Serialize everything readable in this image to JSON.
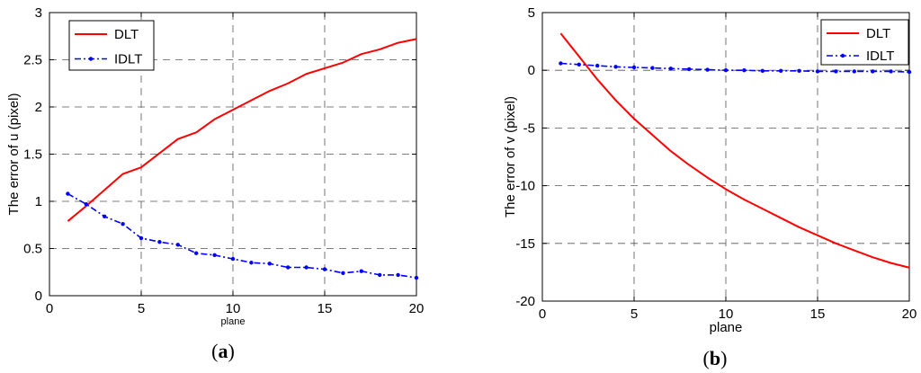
{
  "captions": {
    "a_open": "(",
    "a_letter": "a",
    "a_close": ")",
    "b_open": "(",
    "b_letter": "b",
    "b_close": ")"
  },
  "chart_data": [
    {
      "type": "line",
      "xlabel": "plane",
      "ylabel": "The error of u (pixel)",
      "xlim": [
        0,
        20
      ],
      "ylim": [
        0,
        3
      ],
      "xticks": [
        0,
        5,
        10,
        15,
        20
      ],
      "xtick_labels": [
        "0",
        "5",
        "10",
        "15",
        "20"
      ],
      "yticks": [
        0,
        0.5,
        1,
        1.5,
        2,
        2.5,
        3
      ],
      "ytick_labels": [
        "0",
        "0.5",
        "1",
        "1.5",
        "2",
        "2.5",
        "3"
      ],
      "grid": true,
      "legend": "top-left",
      "x": [
        1,
        2,
        3,
        4,
        5,
        6,
        7,
        8,
        9,
        10,
        11,
        12,
        13,
        14,
        15,
        16,
        17,
        18,
        19,
        20
      ],
      "series": [
        {
          "name": "DLT",
          "color": "#ff0000",
          "style": "solid",
          "values": [
            0.79,
            0.95,
            1.12,
            1.29,
            1.36,
            1.51,
            1.66,
            1.73,
            1.87,
            1.97,
            2.07,
            2.17,
            2.25,
            2.35,
            2.41,
            2.47,
            2.56,
            2.61,
            2.68,
            2.72
          ]
        },
        {
          "name": "IDLT",
          "color": "#0000ff",
          "style": "dashdot",
          "values": [
            1.08,
            0.97,
            0.84,
            0.76,
            0.61,
            0.57,
            0.54,
            0.45,
            0.43,
            0.39,
            0.35,
            0.34,
            0.3,
            0.3,
            0.28,
            0.24,
            0.26,
            0.22,
            0.22,
            0.19
          ]
        }
      ]
    },
    {
      "type": "line",
      "xlabel": "plane",
      "ylabel": "The error of v (pixel)",
      "xlim": [
        0,
        20
      ],
      "ylim": [
        -20,
        5
      ],
      "xticks": [
        0,
        5,
        10,
        15,
        20
      ],
      "xtick_labels": [
        "0",
        "5",
        "10",
        "15",
        "20"
      ],
      "yticks": [
        -20,
        -15,
        -10,
        -5,
        0,
        5
      ],
      "ytick_labels": [
        "-20",
        "-15",
        "-10",
        "-5",
        "0",
        "5"
      ],
      "grid": true,
      "legend": "top-right",
      "x": [
        1,
        2,
        3,
        4,
        5,
        6,
        7,
        8,
        9,
        10,
        11,
        12,
        13,
        14,
        15,
        16,
        17,
        18,
        19,
        20
      ],
      "series": [
        {
          "name": "DLT",
          "color": "#ff0000",
          "style": "solid",
          "values": [
            3.2,
            1.2,
            -0.8,
            -2.6,
            -4.2,
            -5.6,
            -7.0,
            -8.2,
            -9.3,
            -10.3,
            -11.2,
            -12.0,
            -12.8,
            -13.6,
            -14.3,
            -15.0,
            -15.6,
            -16.2,
            -16.7,
            -17.1
          ]
        },
        {
          "name": "IDLT",
          "color": "#0000ff",
          "style": "dashdot",
          "values": [
            0.6,
            0.5,
            0.4,
            0.3,
            0.25,
            0.2,
            0.15,
            0.1,
            0.05,
            0.0,
            0.0,
            -0.05,
            -0.05,
            -0.05,
            -0.1,
            -0.1,
            -0.1,
            -0.1,
            -0.1,
            -0.15
          ]
        }
      ]
    }
  ]
}
